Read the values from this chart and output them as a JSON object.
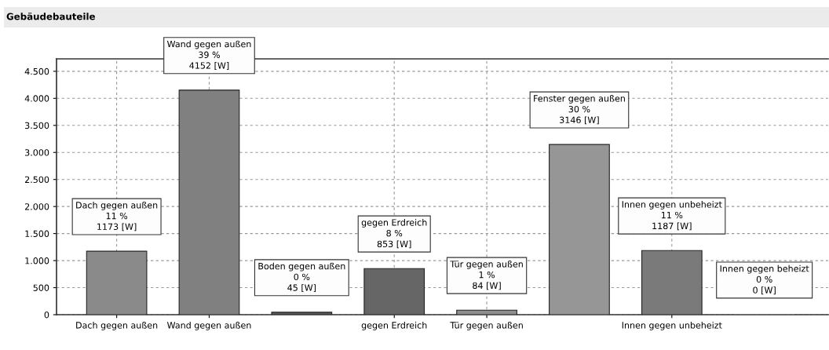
{
  "chart_data": {
    "type": "bar",
    "title": "Gebäudebauteile",
    "categories": [
      "Dach gegen außen",
      "Wand gegen außen",
      null,
      "gegen Erdreich",
      "Tür gegen außen",
      null,
      "Innen gegen unbeheizt",
      null
    ],
    "values": [
      1173,
      4152,
      45,
      853,
      84,
      3146,
      1187,
      0
    ],
    "colors": [
      "#8a8a8a",
      "#808080",
      "#5a5a5a",
      "#666666",
      "#8e8e8e",
      "#969696",
      "#7a7a7a",
      "#7a7a7a"
    ],
    "value_labels": [
      "Dach gegen außen\n11 %\n1173 [W]",
      "Wand gegen außen\n39 %\n4152 [W]",
      "Boden gegen außen\n0 %\n45 [W]",
      "gegen Erdreich\n8 %\n853 [W]",
      "Tür gegen außen\n1 %\n84 [W]",
      "Fenster gegen außen\n30 %\n3146 [W]",
      "Innen gegen unbeheizt\n11 %\n1187 [W]",
      "Innen gegen beheizt\n0 %\n0 [W]"
    ],
    "ylim": [
      0,
      4730
    ],
    "yticks": [
      0,
      500,
      {
        "value": 1000,
        "label": "1.000"
      },
      {
        "value": 1500,
        "label": "1.500"
      },
      {
        "value": 2000,
        "label": "2.000"
      },
      {
        "value": 2500,
        "label": "2.500"
      },
      {
        "value": 3000,
        "label": "3.000"
      },
      {
        "value": 3500,
        "label": "3.500"
      },
      {
        "value": 4000,
        "label": "4.000"
      },
      {
        "value": 4500,
        "label": "4.500"
      }
    ],
    "grid": true
  }
}
